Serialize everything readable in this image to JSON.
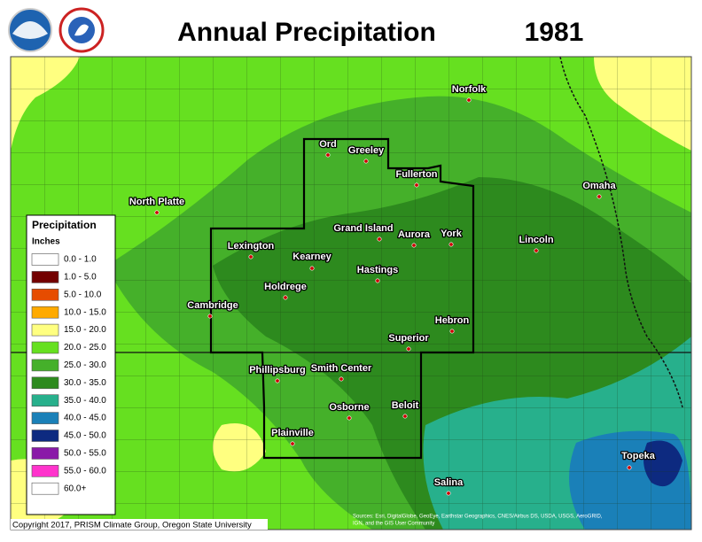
{
  "header": {
    "title": "Annual Precipitation",
    "year": "1981",
    "logos": [
      "NOAA",
      "NATIONAL WEATHER SERVICE"
    ]
  },
  "legend": {
    "title": "Precipitation",
    "units": "Inches",
    "items": [
      {
        "label": "0.0 - 1.0",
        "color": "#ffffff"
      },
      {
        "label": "1.0 - 5.0",
        "color": "#730000"
      },
      {
        "label": "5.0 - 10.0",
        "color": "#e64c00"
      },
      {
        "label": "10.0 - 15.0",
        "color": "#ffaa00"
      },
      {
        "label": "15.0 - 20.0",
        "color": "#ffff80"
      },
      {
        "label": "20.0 - 25.0",
        "color": "#66e020"
      },
      {
        "label": "25.0 - 30.0",
        "color": "#45b02a"
      },
      {
        "label": "30.0 - 35.0",
        "color": "#2d8a1e"
      },
      {
        "label": "35.0 - 40.0",
        "color": "#27b08c"
      },
      {
        "label": "40.0 - 45.0",
        "color": "#1a80b8"
      },
      {
        "label": "45.0 - 50.0",
        "color": "#0d2a80"
      },
      {
        "label": "50.0 - 55.0",
        "color": "#8a1aa8"
      },
      {
        "label": "55.0 - 60.0",
        "color": "#ff33cc"
      },
      {
        "label": "60.0+",
        "color": "#ffffff"
      }
    ]
  },
  "cities": [
    "Norfolk",
    "Ord",
    "Greeley",
    "Fullerton",
    "Omaha",
    "North Platte",
    "Grand Island",
    "Aurora",
    "York",
    "Lincoln",
    "Lexington",
    "Kearney",
    "Hastings",
    "Holdrege",
    "Cambridge",
    "Hebron",
    "Superior",
    "Phillipsburg",
    "Smith Center",
    "Beloit",
    "Osborne",
    "Plainville",
    "Topeka",
    "Salina"
  ],
  "footer": {
    "copyright": "Copyright 2017, PRISM Climate Group, Oregon State University",
    "sources": [
      "Sources: Esri, DigitalGlobe, GeoEye, Earthstar Geographics, CNES/Airbus DS, USDA, USGS, AeroGRID,",
      "IGN, and the GIS User Community"
    ]
  }
}
